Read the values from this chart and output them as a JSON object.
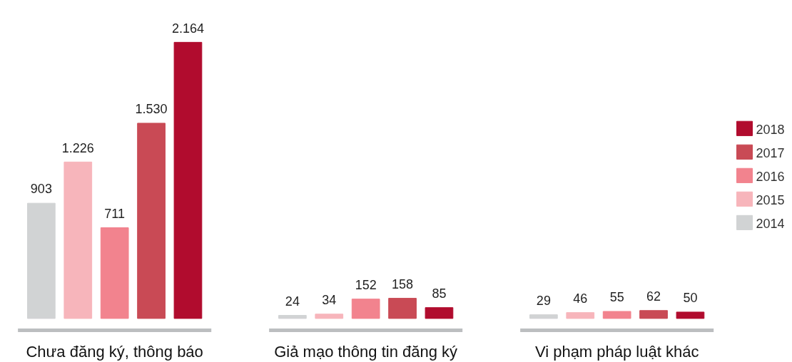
{
  "chart_data": {
    "type": "bar",
    "categories": [
      "Chưa đăng ký, thông báo",
      "Giả mạo thông tin đăng ký",
      "Vi phạm pháp luật khác"
    ],
    "series": [
      {
        "name": "2014",
        "color": "#d1d3d4",
        "values": [
          903,
          24,
          29
        ],
        "value_labels": [
          "903",
          "24",
          "29"
        ]
      },
      {
        "name": "2015",
        "color": "#f7b5bb",
        "values": [
          1226,
          34,
          46
        ],
        "value_labels": [
          "1.226",
          "34",
          "46"
        ]
      },
      {
        "name": "2016",
        "color": "#f2838e",
        "values": [
          711,
          152,
          55
        ],
        "value_labels": [
          "711",
          "152",
          "55"
        ]
      },
      {
        "name": "2017",
        "color": "#c94a55",
        "values": [
          1530,
          158,
          62
        ],
        "value_labels": [
          "1.530",
          "158",
          "62"
        ]
      },
      {
        "name": "2018",
        "color": "#b10c2e",
        "values": [
          2164,
          85,
          50
        ],
        "value_labels": [
          "2.164",
          "85",
          "50"
        ]
      }
    ],
    "legend": "right",
    "grid": false
  }
}
